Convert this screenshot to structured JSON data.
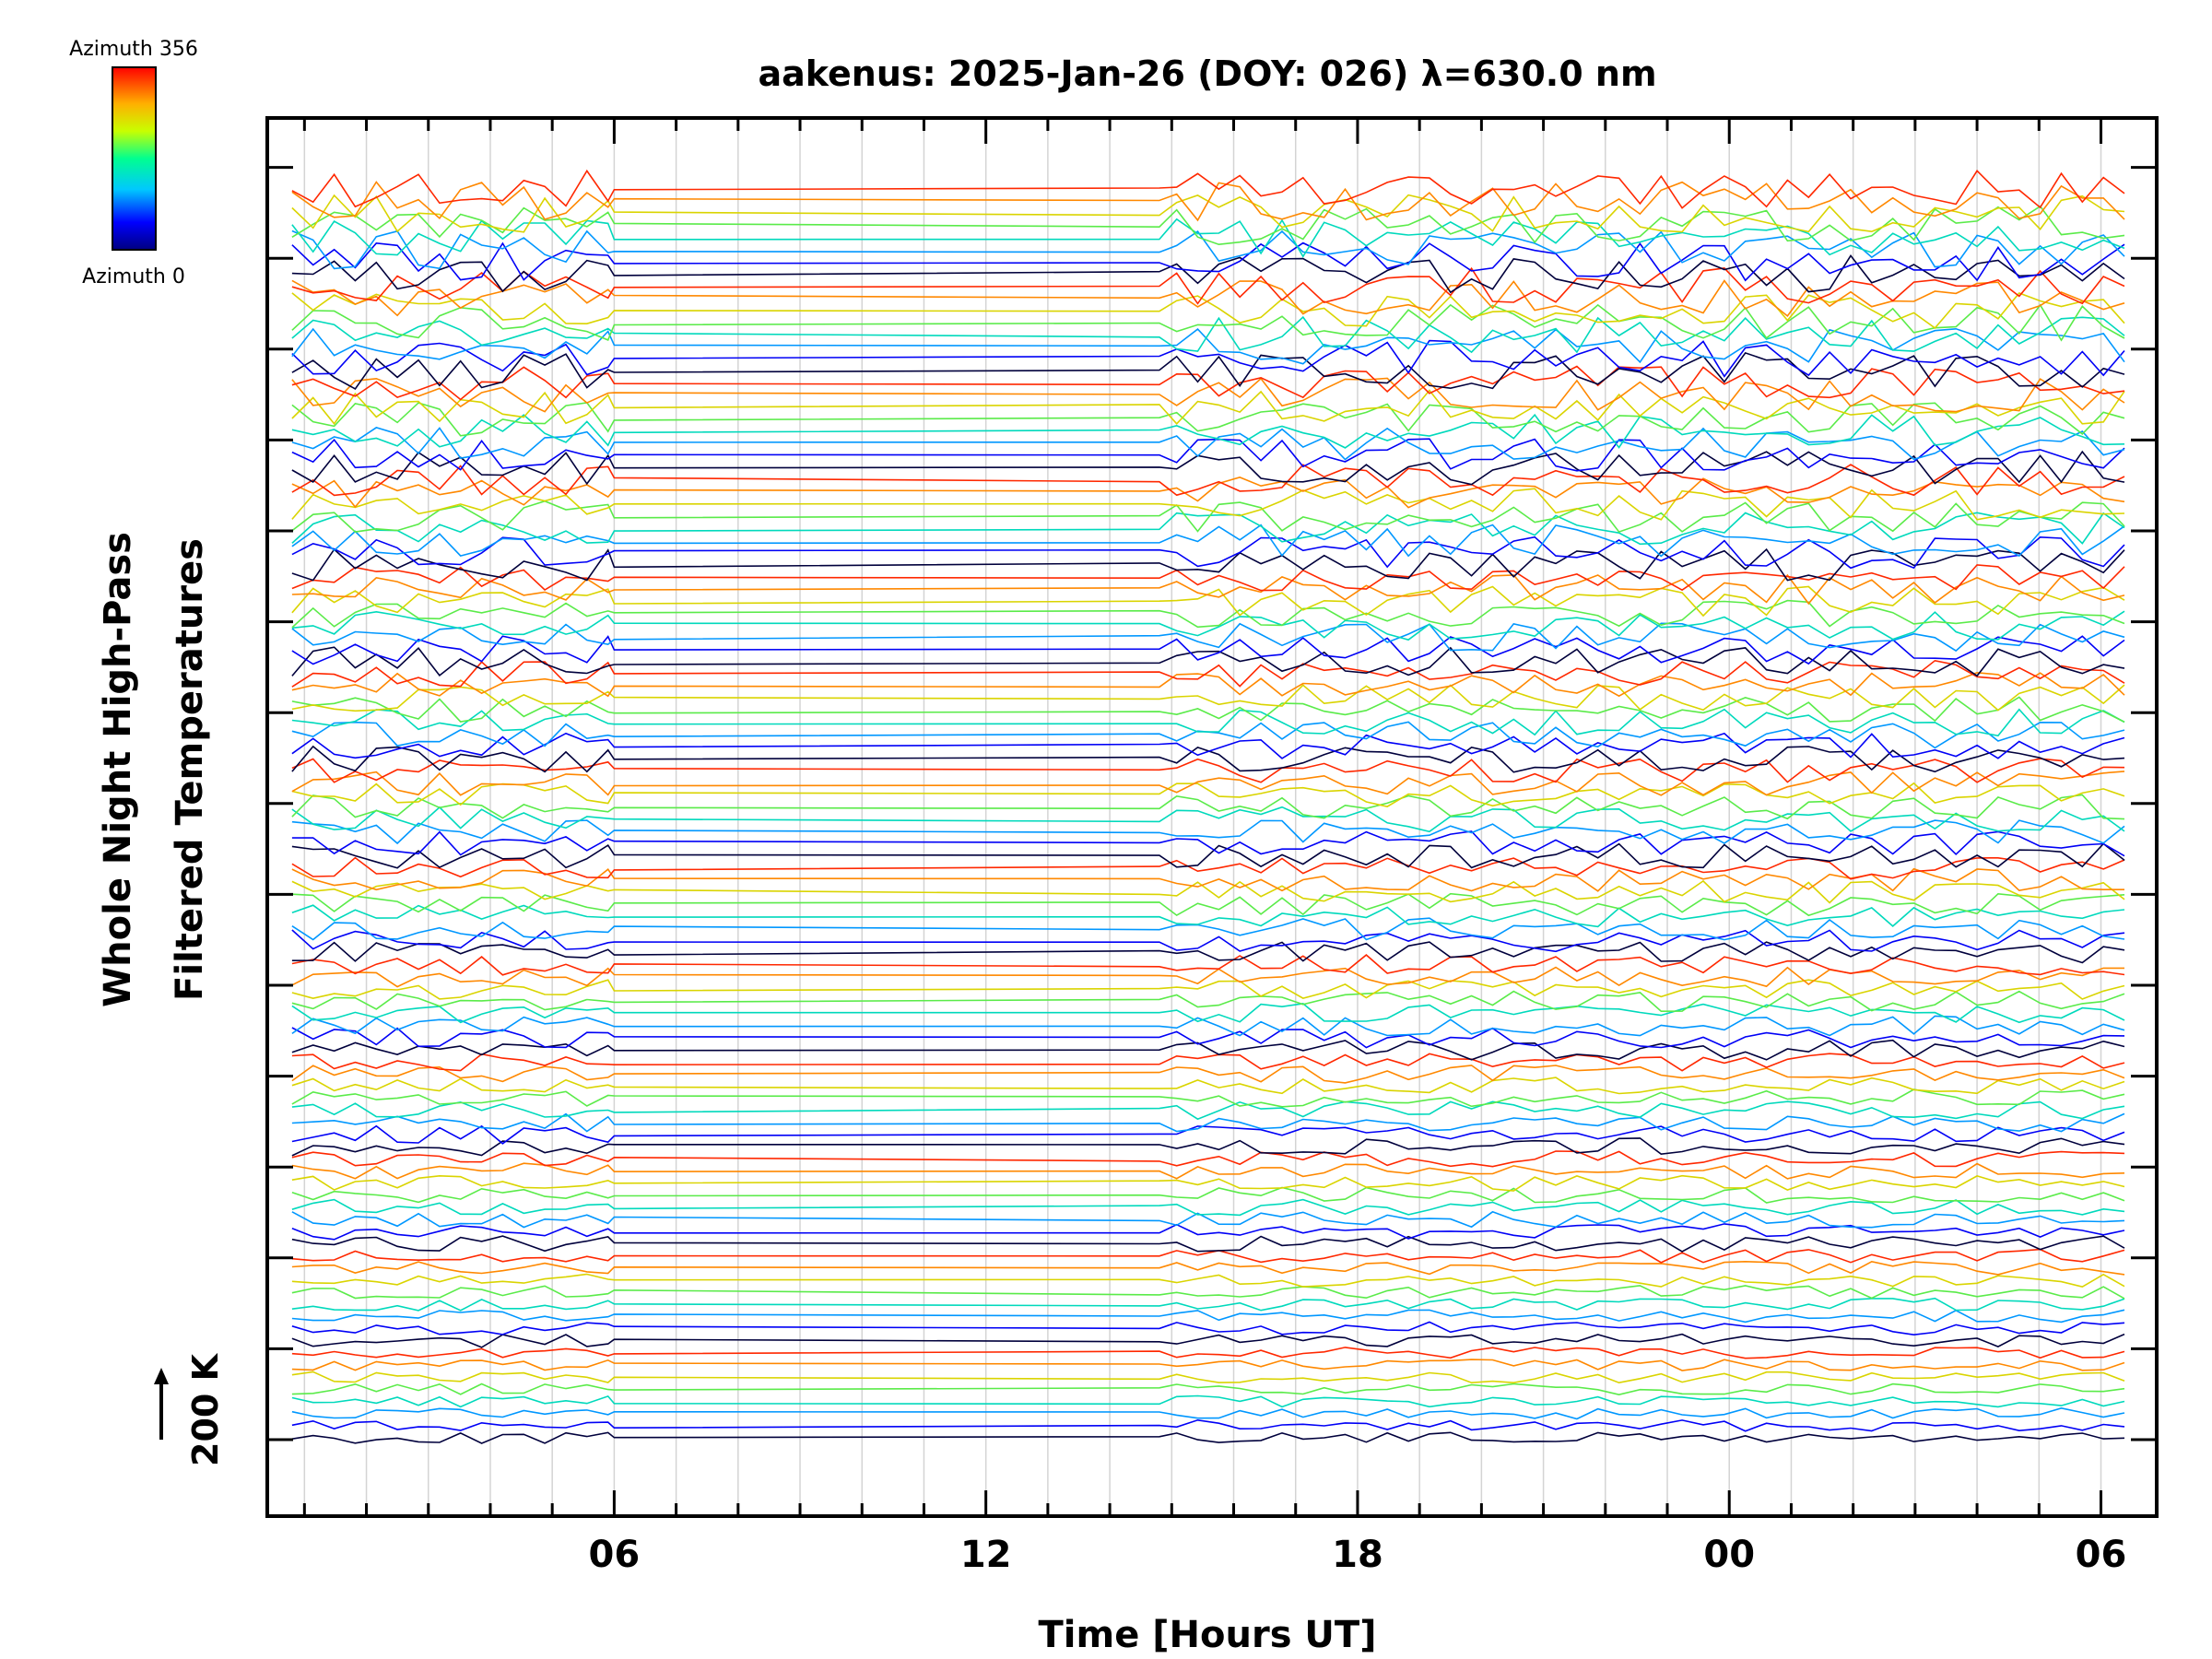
{
  "chart_data": {
    "type": "line",
    "title": "aakenus: 2025-Jan-26 (DOY: 026) λ=630.0 nm",
    "xlabel": "Time [Hours UT]",
    "ylabel_line1": "Whole Night High-Pass",
    "ylabel_line2": "Filtered Temperatures",
    "scale_bar_label": "200 K",
    "x_ticks": [
      "06",
      "12",
      "18",
      "00",
      "06"
    ],
    "x_tick_hours": [
      6,
      12,
      18,
      24,
      30
    ],
    "x_range_hours": [
      0.4,
      30.9
    ],
    "data_range_hours": [
      0.8,
      30.4
    ],
    "data_gap_hours": [
      6.0,
      14.8
    ],
    "series_groups": 13,
    "series_per_group": 8,
    "colorbar": {
      "top_label": "Azimuth 356",
      "bottom_label": "Azimuth 0",
      "range": [
        0,
        356
      ],
      "colormap": "rainbow"
    },
    "series_note": "Many series (one per azimuth/look direction); curves stacked vertically, colored by azimuth"
  }
}
